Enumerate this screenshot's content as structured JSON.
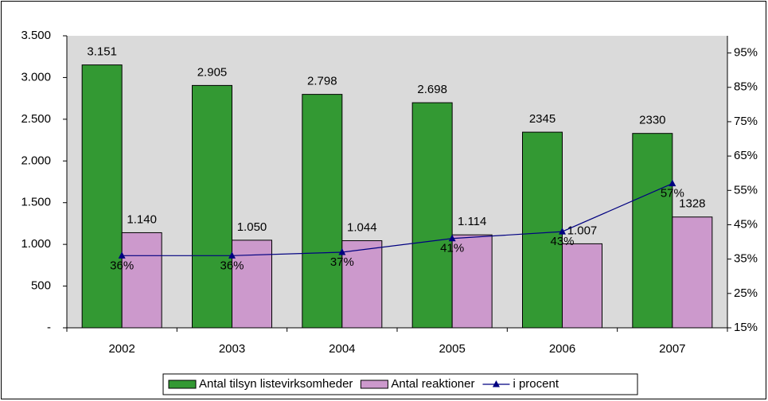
{
  "chart_data": {
    "type": "bar-line",
    "categories": [
      "2002",
      "2003",
      "2004",
      "2005",
      "2006",
      "2007"
    ],
    "series": [
      {
        "name": "Antal tilsyn listevirksomheder",
        "type": "bar",
        "color": "#339933",
        "values": [
          3151,
          2905,
          2798,
          2698,
          2345,
          2330
        ],
        "value_labels": [
          "3.151",
          "2.905",
          "2.798",
          "2.698",
          "2345",
          "2330"
        ]
      },
      {
        "name": "Antal reaktioner",
        "type": "bar",
        "color": "#cc99cc",
        "values": [
          1140,
          1050,
          1044,
          1114,
          1007,
          1328
        ],
        "value_labels": [
          "1.140",
          "1.050",
          "1.044",
          "1.114",
          "1.007",
          "1328"
        ]
      },
      {
        "name": "i procent",
        "type": "line",
        "axis": "y2",
        "color": "#000080",
        "values": [
          36,
          36,
          37,
          41,
          43,
          57
        ],
        "value_labels": [
          "36%",
          "36%",
          "37%",
          "41%",
          "43%",
          "57%"
        ]
      }
    ],
    "ylim": [
      0,
      3500
    ],
    "yticks": [
      {
        "value": 0,
        "label": "-"
      },
      500,
      {
        "value": 1000,
        "label": "1.000"
      },
      {
        "value": 1500,
        "label": "1.500"
      },
      {
        "value": 2000,
        "label": "2.000"
      },
      {
        "value": 2500,
        "label": "2.500"
      },
      {
        "value": 3000,
        "label": "3.000"
      },
      {
        "value": 3500,
        "label": "3.500"
      }
    ],
    "y2lim": [
      15,
      100
    ],
    "y2ticks": [
      {
        "value": 15,
        "label": "15%"
      },
      {
        "value": 25,
        "label": "25%"
      },
      {
        "value": 35,
        "label": "35%"
      },
      {
        "value": 45,
        "label": "45%"
      },
      {
        "value": 55,
        "label": "55%"
      },
      {
        "value": 65,
        "label": "65%"
      },
      {
        "value": 75,
        "label": "75%"
      },
      {
        "value": 85,
        "label": "85%"
      },
      {
        "value": 95,
        "label": "95%"
      }
    ],
    "legend": "bottom"
  }
}
